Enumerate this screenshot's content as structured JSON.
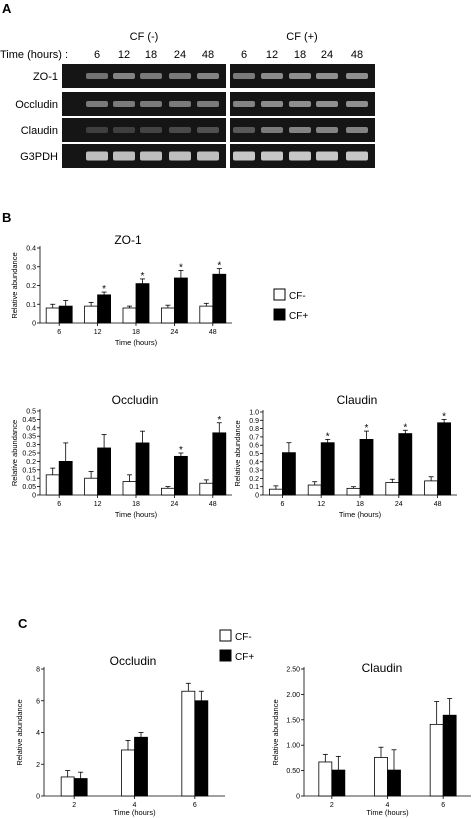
{
  "panels": {
    "a": "A",
    "b": "B",
    "c": "C"
  },
  "gel": {
    "time_label": "Time (hours) :",
    "groups": [
      {
        "label": "CF (-)",
        "times": [
          "6",
          "12",
          "18",
          "24",
          "48"
        ]
      },
      {
        "label": "CF (+)",
        "times": [
          "6",
          "12",
          "18",
          "24",
          "48"
        ]
      }
    ],
    "rows": [
      "ZO-1",
      "Occludin",
      "Claudin",
      "G3PDH"
    ],
    "band_intensity": [
      [
        [
          0.45,
          0.55,
          0.5,
          0.5,
          0.55
        ],
        [
          0.5,
          0.6,
          0.62,
          0.62,
          0.62
        ]
      ],
      [
        [
          0.5,
          0.5,
          0.5,
          0.5,
          0.5
        ],
        [
          0.55,
          0.6,
          0.62,
          0.62,
          0.62
        ]
      ],
      [
        [
          0.15,
          0.15,
          0.18,
          0.22,
          0.25
        ],
        [
          0.3,
          0.5,
          0.55,
          0.55,
          0.55
        ]
      ],
      [
        [
          0.9,
          0.9,
          0.9,
          0.9,
          0.9
        ],
        [
          0.95,
          0.95,
          0.95,
          0.95,
          0.95
        ]
      ]
    ]
  },
  "legends": {
    "b": {
      "items": [
        "CF-",
        "CF+"
      ]
    },
    "c": {
      "items": [
        "CF-",
        "CF+"
      ]
    }
  },
  "chart_data": [
    {
      "id": "b-zo1",
      "type": "bar",
      "title": "ZO-1",
      "xlabel": "Time (hours)",
      "ylabel": "Relative abundance",
      "categories": [
        "6",
        "12",
        "18",
        "24",
        "48"
      ],
      "ylim": [
        0,
        0.4
      ],
      "yticks": [
        "0",
        "0.1",
        "0.2",
        "0.3",
        "0.4"
      ],
      "series": [
        {
          "name": "CF-",
          "values": [
            0.08,
            0.09,
            0.08,
            0.08,
            0.09
          ],
          "errors": [
            0.02,
            0.02,
            0.01,
            0.015,
            0.015
          ]
        },
        {
          "name": "CF+",
          "values": [
            0.09,
            0.15,
            0.21,
            0.24,
            0.26
          ],
          "errors": [
            0.03,
            0.015,
            0.025,
            0.04,
            0.03
          ]
        }
      ],
      "significant": [
        false,
        true,
        true,
        true,
        true
      ],
      "star": "*"
    },
    {
      "id": "b-occludin",
      "type": "bar",
      "title": "Occludin",
      "xlabel": "Time (hours)",
      "ylabel": "Relative abundance",
      "categories": [
        "6",
        "12",
        "18",
        "24",
        "48"
      ],
      "ylim": [
        0,
        0.5
      ],
      "yticks": [
        "0",
        "0.05",
        "0.1",
        "0.15",
        "0.2",
        "0.25",
        "0.3",
        "0.35",
        "0.4",
        "0.45",
        "0.5"
      ],
      "series": [
        {
          "name": "CF-",
          "values": [
            0.12,
            0.1,
            0.08,
            0.04,
            0.07
          ],
          "errors": [
            0.04,
            0.04,
            0.04,
            0.01,
            0.02
          ]
        },
        {
          "name": "CF+",
          "values": [
            0.2,
            0.28,
            0.31,
            0.23,
            0.37
          ],
          "errors": [
            0.11,
            0.08,
            0.07,
            0.02,
            0.06
          ]
        }
      ],
      "significant": [
        false,
        false,
        false,
        true,
        true
      ],
      "star": "*"
    },
    {
      "id": "b-claudin",
      "type": "bar",
      "title": "Claudin",
      "xlabel": "Time (hours)",
      "ylabel": "Relative abundance",
      "categories": [
        "6",
        "12",
        "18",
        "24",
        "48"
      ],
      "ylim": [
        0,
        1.0
      ],
      "yticks": [
        "0",
        "0.1",
        "0.2",
        "0.3",
        "0.4",
        "0.5",
        "0.6",
        "0.7",
        "0.8",
        "0.9",
        "1.0"
      ],
      "series": [
        {
          "name": "CF-",
          "values": [
            0.07,
            0.12,
            0.08,
            0.15,
            0.17
          ],
          "errors": [
            0.04,
            0.04,
            0.02,
            0.04,
            0.05
          ]
        },
        {
          "name": "CF+",
          "values": [
            0.51,
            0.63,
            0.67,
            0.74,
            0.87
          ],
          "errors": [
            0.12,
            0.04,
            0.1,
            0.04,
            0.04
          ]
        }
      ],
      "significant": [
        false,
        true,
        true,
        true,
        true
      ],
      "star": "*"
    },
    {
      "id": "c-occludin",
      "type": "bar",
      "title": "Occludin",
      "xlabel": "Time (hours)",
      "ylabel": "Relative abundance",
      "categories": [
        "2",
        "4",
        "6"
      ],
      "ylim": [
        0,
        8
      ],
      "yticks": [
        "0",
        "2",
        "4",
        "6",
        "8"
      ],
      "series": [
        {
          "name": "CF-",
          "values": [
            1.2,
            2.9,
            6.6
          ],
          "errors": [
            0.4,
            0.6,
            0.5
          ]
        },
        {
          "name": "CF+",
          "values": [
            1.1,
            3.7,
            6.0
          ],
          "errors": [
            0.4,
            0.3,
            0.6
          ]
        }
      ],
      "significant": [
        false,
        false,
        false
      ],
      "star": "*"
    },
    {
      "id": "c-claudin",
      "type": "bar",
      "title": "Claudin",
      "xlabel": "Time (hours)",
      "ylabel": "Relative abundance",
      "categories": [
        "2",
        "4",
        "6"
      ],
      "ylim": [
        0,
        2.5
      ],
      "yticks": [
        "0",
        "0.50",
        "1.00",
        "1.50",
        "2.00",
        "2.50"
      ],
      "series": [
        {
          "name": "CF-",
          "values": [
            0.67,
            0.76,
            1.41
          ],
          "errors": [
            0.15,
            0.2,
            0.45
          ]
        },
        {
          "name": "CF+",
          "values": [
            0.51,
            0.51,
            1.59
          ],
          "errors": [
            0.27,
            0.4,
            0.33
          ]
        }
      ],
      "significant": [
        false,
        false,
        false
      ],
      "star": "*"
    }
  ]
}
